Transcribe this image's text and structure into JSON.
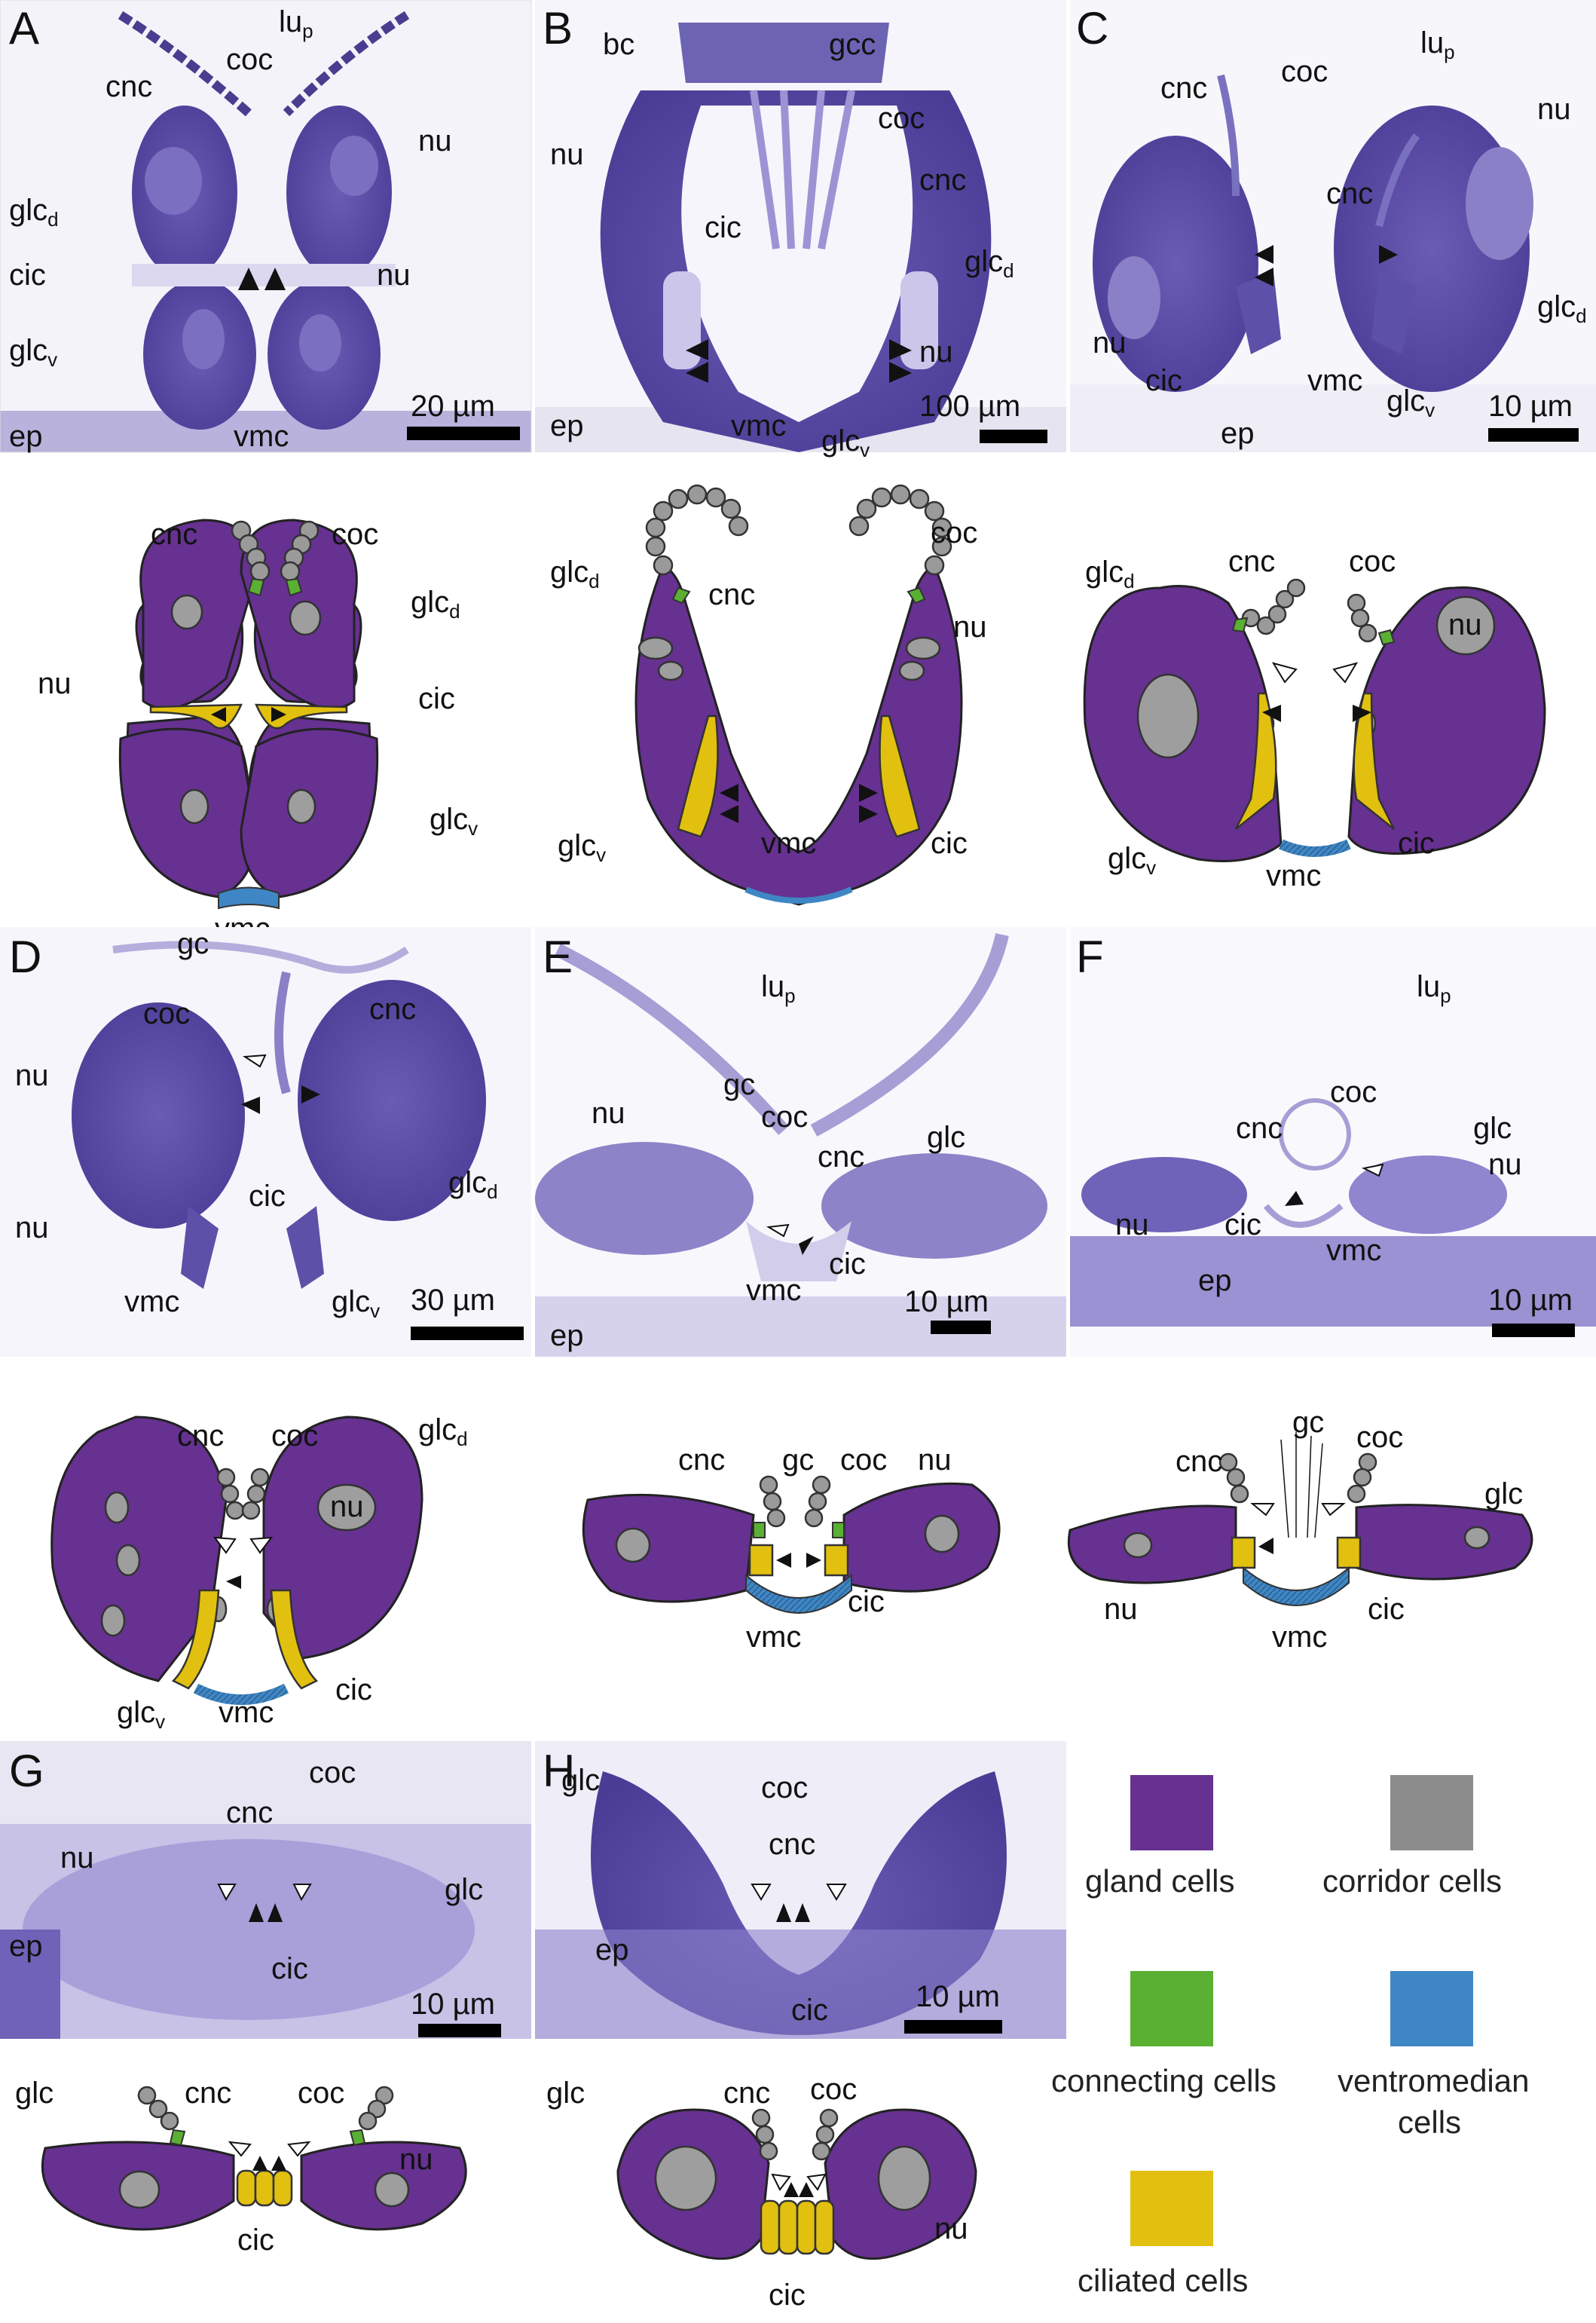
{
  "panels": {
    "A": {
      "letter": "A",
      "scale": "20 µm"
    },
    "B": {
      "letter": "B",
      "scale": "100 µm"
    },
    "C": {
      "letter": "C",
      "scale": "10 µm"
    },
    "D": {
      "letter": "D",
      "scale": "30 µm"
    },
    "E": {
      "letter": "E",
      "scale": "10 µm"
    },
    "F": {
      "letter": "F",
      "scale": "10 µm"
    },
    "G": {
      "letter": "G",
      "scale": "10 µm"
    },
    "H": {
      "letter": "H",
      "scale": "10 µm"
    }
  },
  "labels": {
    "lu": "lu",
    "lu_sub": "p",
    "coc": "coc",
    "cnc": "cnc",
    "nu": "nu",
    "glc": "glc",
    "glc_d_sub": "d",
    "glc_v_sub": "v",
    "cic": "cic",
    "vmc": "vmc",
    "ep": "ep",
    "bc": "bc",
    "gcc": "gcc",
    "gc": "gc"
  },
  "legend": {
    "items": [
      {
        "label": "gland cells",
        "color": "#663191"
      },
      {
        "label": "corridor cells",
        "color": "#8c8c8c"
      },
      {
        "label": "connecting cells",
        "color": "#5ab033"
      },
      {
        "label": "ventromedian cells",
        "color": "#3f86c4"
      },
      {
        "label": "ciliated cells",
        "color": "#e2c010"
      }
    ],
    "ventromedian_line1": "ventromedian",
    "ventromedian_line2": "cells"
  },
  "colors": {
    "stain_purple": "#5a4aa6",
    "stain_light": "#c9c4e6",
    "background": "#ffffff"
  }
}
